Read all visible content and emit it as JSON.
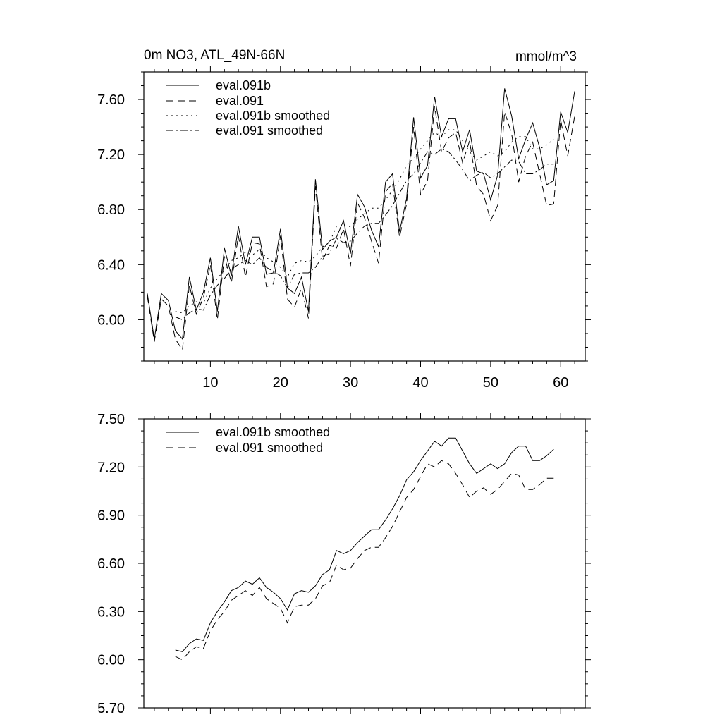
{
  "colors": {
    "line": "#000000",
    "background": "#ffffff"
  },
  "chart_data": [
    {
      "type": "line",
      "title": "0m NO3, ATL_49N-66N",
      "units": "mmol/m^3",
      "xlabel": "",
      "ylabel": "",
      "xlim": [
        0.5,
        63.5
      ],
      "ylim": [
        5.7,
        7.8
      ],
      "xticks": [
        10,
        20,
        30,
        40,
        50,
        60
      ],
      "yticks": [
        6.0,
        6.4,
        6.8,
        7.2,
        7.6
      ],
      "ytick_labels": [
        "6.00",
        "6.40",
        "6.80",
        "7.20",
        "7.60"
      ],
      "legend_position": "top-left",
      "series": [
        {
          "name": "eval.091b",
          "style": "solid",
          "x": [
            1,
            2,
            3,
            4,
            5,
            6,
            7,
            8,
            9,
            10,
            11,
            12,
            13,
            14,
            15,
            16,
            17,
            18,
            19,
            20,
            21,
            22,
            23,
            24,
            25,
            26,
            27,
            28,
            29,
            30,
            31,
            32,
            33,
            34,
            35,
            36,
            37,
            38,
            39,
            40,
            41,
            42,
            43,
            44,
            45,
            46,
            47,
            48,
            49,
            50,
            51,
            52,
            53,
            54,
            55,
            56,
            57,
            58,
            59,
            60,
            61,
            62
          ],
          "values": [
            6.19,
            5.86,
            6.19,
            6.14,
            5.92,
            5.86,
            6.31,
            6.07,
            6.2,
            6.45,
            6.06,
            6.52,
            6.32,
            6.68,
            6.4,
            6.6,
            6.6,
            6.33,
            6.34,
            6.66,
            6.23,
            6.19,
            6.31,
            6.06,
            7.02,
            6.51,
            6.57,
            6.6,
            6.72,
            6.48,
            6.91,
            6.82,
            6.65,
            6.53,
            7.0,
            7.06,
            6.64,
            6.88,
            7.47,
            7.03,
            7.12,
            7.62,
            7.33,
            7.46,
            7.46,
            7.22,
            7.38,
            7.08,
            7.06,
            6.87,
            7.05,
            7.68,
            7.48,
            7.17,
            7.31,
            7.43,
            7.25,
            6.98,
            7.01,
            7.51,
            7.36,
            7.66
          ]
        },
        {
          "name": "eval.091",
          "style": "dashed",
          "x": [
            1,
            2,
            3,
            4,
            5,
            6,
            7,
            8,
            9,
            10,
            11,
            12,
            13,
            14,
            15,
            16,
            17,
            18,
            19,
            20,
            21,
            22,
            23,
            24,
            25,
            26,
            27,
            28,
            29,
            30,
            31,
            32,
            33,
            34,
            35,
            36,
            37,
            38,
            39,
            40,
            41,
            42,
            43,
            44,
            45,
            46,
            47,
            48,
            49,
            50,
            51,
            52,
            53,
            54,
            55,
            56,
            57,
            58,
            59,
            60,
            61,
            62
          ],
          "values": [
            6.17,
            5.84,
            6.15,
            6.1,
            5.86,
            5.78,
            6.25,
            6.04,
            6.16,
            6.4,
            6.0,
            6.46,
            6.27,
            6.61,
            6.31,
            6.56,
            6.55,
            6.24,
            6.26,
            6.61,
            6.15,
            6.09,
            6.23,
            6.01,
            6.97,
            6.43,
            6.54,
            6.52,
            6.66,
            6.39,
            6.85,
            6.74,
            6.57,
            6.41,
            6.93,
            6.99,
            6.6,
            6.84,
            7.4,
            6.91,
            7.01,
            7.55,
            7.22,
            7.32,
            7.36,
            7.14,
            7.3,
            6.97,
            6.91,
            6.72,
            6.83,
            7.51,
            7.35,
            7.0,
            7.19,
            7.29,
            7.06,
            6.83,
            6.84,
            7.45,
            7.19,
            7.48
          ]
        },
        {
          "name": "eval.091b smoothed",
          "style": "dotted",
          "x": [
            5,
            6,
            7,
            8,
            9,
            10,
            11,
            12,
            13,
            14,
            15,
            16,
            17,
            18,
            19,
            20,
            21,
            22,
            23,
            24,
            25,
            26,
            27,
            28,
            29,
            30,
            31,
            32,
            33,
            34,
            35,
            36,
            37,
            38,
            39,
            40,
            41,
            42,
            43,
            44,
            45,
            46,
            47,
            48,
            49,
            50,
            51,
            52,
            53,
            54,
            55,
            56,
            57,
            58,
            59
          ],
          "values": [
            6.06,
            6.05,
            6.1,
            6.13,
            6.12,
            6.23,
            6.3,
            6.36,
            6.43,
            6.45,
            6.49,
            6.47,
            6.51,
            6.45,
            6.42,
            6.38,
            6.31,
            6.41,
            6.43,
            6.42,
            6.46,
            6.53,
            6.56,
            6.68,
            6.66,
            6.68,
            6.73,
            6.77,
            6.81,
            6.81,
            6.87,
            6.94,
            7.02,
            7.12,
            7.17,
            7.24,
            7.3,
            7.36,
            7.33,
            7.38,
            7.38,
            7.3,
            7.22,
            7.16,
            7.19,
            7.22,
            7.19,
            7.22,
            7.29,
            7.33,
            7.33,
            7.24,
            7.24,
            7.27,
            7.31
          ]
        },
        {
          "name": "eval.091 smoothed",
          "style": "dashdot",
          "x": [
            5,
            6,
            7,
            8,
            9,
            10,
            11,
            12,
            13,
            14,
            15,
            16,
            17,
            18,
            19,
            20,
            21,
            22,
            23,
            24,
            25,
            26,
            27,
            28,
            29,
            30,
            31,
            32,
            33,
            34,
            35,
            36,
            37,
            38,
            39,
            40,
            41,
            42,
            43,
            44,
            45,
            46,
            47,
            48,
            49,
            50,
            51,
            52,
            53,
            54,
            55,
            56,
            57,
            58,
            59
          ],
          "values": [
            6.02,
            6.0,
            6.05,
            6.08,
            6.07,
            6.18,
            6.25,
            6.3,
            6.37,
            6.4,
            6.43,
            6.4,
            6.45,
            6.38,
            6.35,
            6.32,
            6.23,
            6.33,
            6.34,
            6.34,
            6.38,
            6.46,
            6.48,
            6.59,
            6.56,
            6.57,
            6.63,
            6.68,
            6.7,
            6.7,
            6.76,
            6.83,
            6.92,
            7.01,
            7.06,
            7.14,
            7.22,
            7.2,
            7.24,
            7.22,
            7.16,
            7.09,
            7.01,
            7.05,
            7.07,
            7.03,
            7.06,
            7.11,
            7.16,
            7.15,
            7.06,
            7.06,
            7.09,
            7.13,
            7.13
          ]
        }
      ]
    },
    {
      "type": "line",
      "title": "",
      "xlabel": "",
      "ylabel": "",
      "xlim": [
        0.5,
        63.5
      ],
      "ylim": [
        5.7,
        7.5
      ],
      "xticks": [
        10,
        20,
        30,
        40,
        50,
        60
      ],
      "yticks": [
        5.7,
        6.0,
        6.3,
        6.6,
        6.9,
        7.2,
        7.5
      ],
      "ytick_labels": [
        "5.70",
        "6.00",
        "6.30",
        "6.60",
        "6.90",
        "7.20",
        "7.50"
      ],
      "legend_position": "top-left",
      "series": [
        {
          "name": "eval.091b smoothed",
          "style": "solid",
          "x": [
            5,
            6,
            7,
            8,
            9,
            10,
            11,
            12,
            13,
            14,
            15,
            16,
            17,
            18,
            19,
            20,
            21,
            22,
            23,
            24,
            25,
            26,
            27,
            28,
            29,
            30,
            31,
            32,
            33,
            34,
            35,
            36,
            37,
            38,
            39,
            40,
            41,
            42,
            43,
            44,
            45,
            46,
            47,
            48,
            49,
            50,
            51,
            52,
            53,
            54,
            55,
            56,
            57,
            58,
            59
          ],
          "values": [
            6.06,
            6.05,
            6.1,
            6.13,
            6.12,
            6.23,
            6.3,
            6.36,
            6.43,
            6.45,
            6.49,
            6.47,
            6.51,
            6.45,
            6.42,
            6.38,
            6.31,
            6.41,
            6.43,
            6.42,
            6.46,
            6.53,
            6.56,
            6.68,
            6.66,
            6.68,
            6.73,
            6.77,
            6.81,
            6.81,
            6.87,
            6.94,
            7.02,
            7.12,
            7.17,
            7.24,
            7.3,
            7.36,
            7.33,
            7.38,
            7.38,
            7.3,
            7.22,
            7.16,
            7.19,
            7.22,
            7.19,
            7.22,
            7.29,
            7.33,
            7.33,
            7.24,
            7.24,
            7.27,
            7.31
          ]
        },
        {
          "name": "eval.091 smoothed",
          "style": "dashed",
          "x": [
            5,
            6,
            7,
            8,
            9,
            10,
            11,
            12,
            13,
            14,
            15,
            16,
            17,
            18,
            19,
            20,
            21,
            22,
            23,
            24,
            25,
            26,
            27,
            28,
            29,
            30,
            31,
            32,
            33,
            34,
            35,
            36,
            37,
            38,
            39,
            40,
            41,
            42,
            43,
            44,
            45,
            46,
            47,
            48,
            49,
            50,
            51,
            52,
            53,
            54,
            55,
            56,
            57,
            58,
            59
          ],
          "values": [
            6.02,
            6.0,
            6.05,
            6.08,
            6.07,
            6.18,
            6.25,
            6.3,
            6.37,
            6.4,
            6.43,
            6.4,
            6.45,
            6.38,
            6.35,
            6.32,
            6.23,
            6.33,
            6.34,
            6.34,
            6.38,
            6.46,
            6.48,
            6.59,
            6.56,
            6.57,
            6.63,
            6.68,
            6.7,
            6.7,
            6.76,
            6.83,
            6.92,
            7.01,
            7.06,
            7.14,
            7.22,
            7.2,
            7.24,
            7.22,
            7.16,
            7.09,
            7.01,
            7.05,
            7.07,
            7.03,
            7.06,
            7.11,
            7.16,
            7.15,
            7.06,
            7.06,
            7.09,
            7.13,
            7.13
          ]
        }
      ]
    }
  ]
}
